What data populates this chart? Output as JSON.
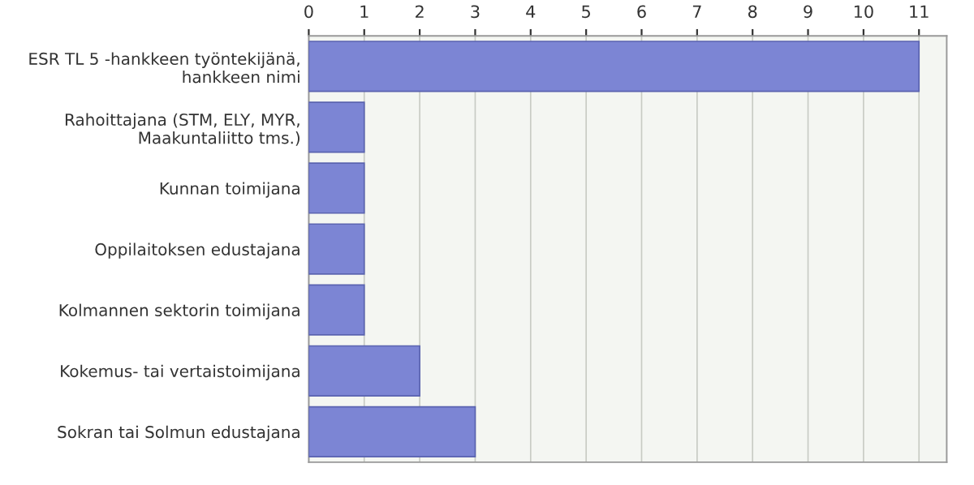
{
  "chart_data": {
    "type": "bar",
    "orientation": "horizontal",
    "categories": [
      "ESR TL 5 -hankkeen työntekijänä,\nhankkeen nimi",
      "Rahoittajana (STM, ELY, MYR,\nMaakuntaliitto tms.)",
      "Kunnan toimijana",
      "Oppilaitoksen edustajana",
      "Kolmannen sektorin toimijana",
      "Kokemus- tai vertaistoimijana",
      "Sokran tai Solmun edustajana"
    ],
    "values": [
      11,
      1,
      1,
      1,
      1,
      2,
      3
    ],
    "color": "#7c85d4",
    "xlim": [
      0,
      11.5
    ],
    "xticks": [
      0,
      1,
      2,
      3,
      4,
      5,
      6,
      7,
      8,
      9,
      10,
      11
    ],
    "grid": "x"
  }
}
